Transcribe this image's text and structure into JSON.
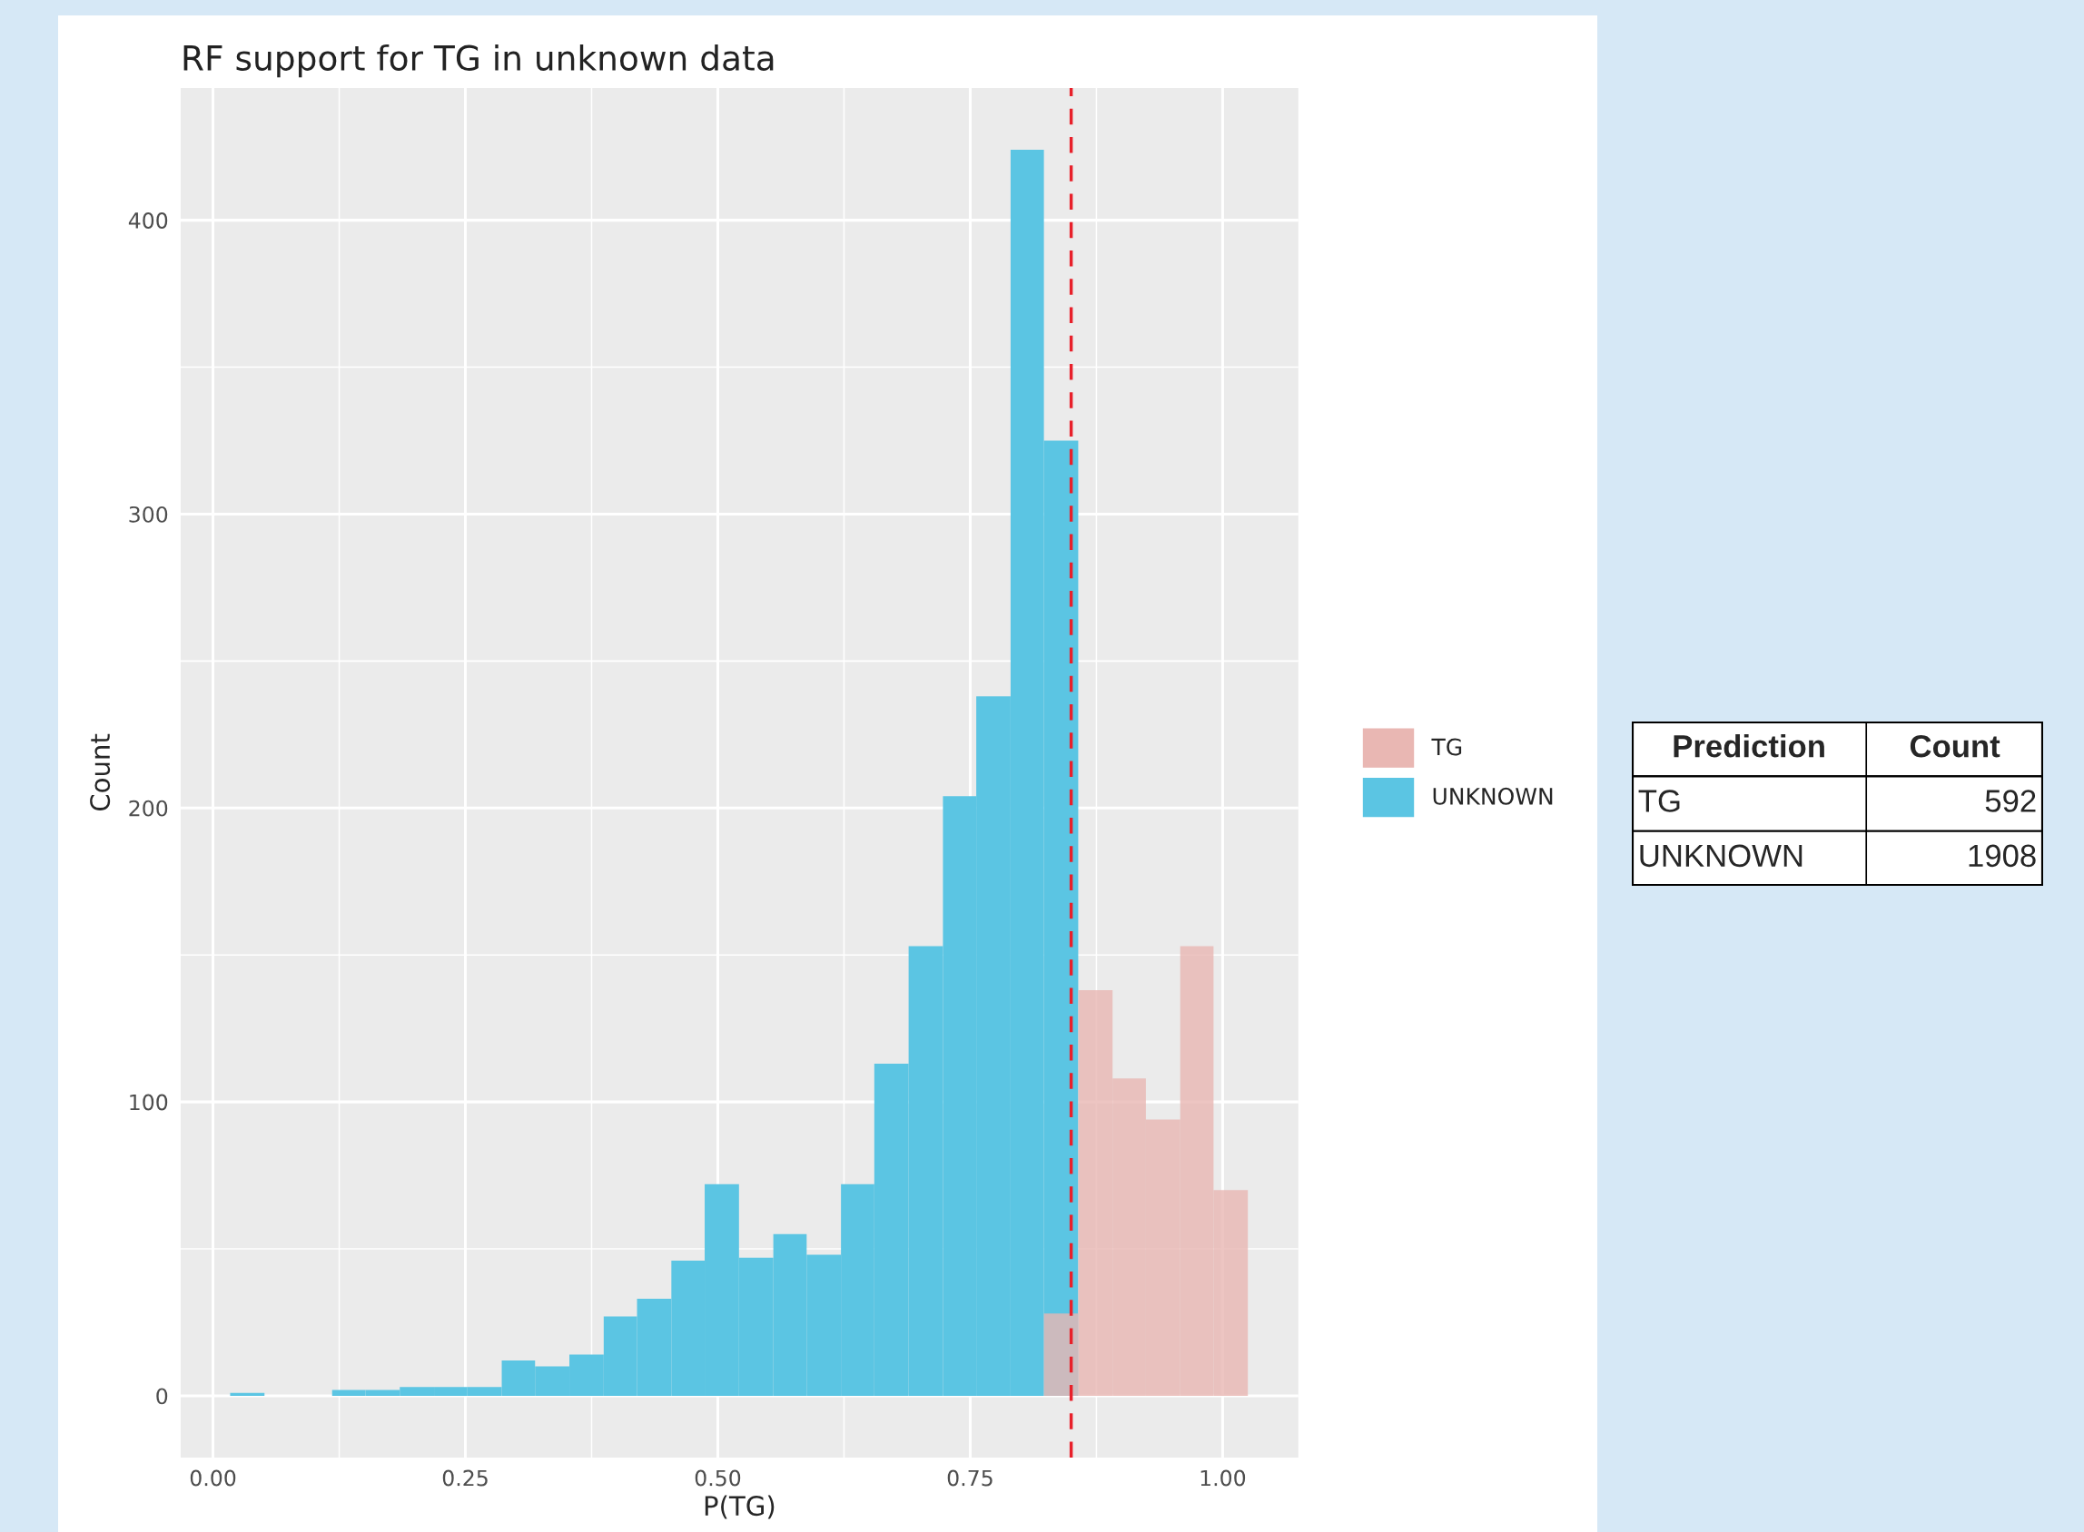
{
  "chart_data": [
    {
      "type": "histogram",
      "title": "RF support for TG in unknown data",
      "xlabel": "P(TG)",
      "ylabel": "Count",
      "bins": [
        0.017,
        0.051,
        0.118,
        0.151,
        0.185,
        0.219,
        0.252,
        0.286,
        0.319,
        0.353,
        0.387,
        0.42,
        0.454,
        0.487,
        0.521,
        0.555,
        0.588,
        0.622,
        0.655,
        0.689,
        0.723,
        0.756,
        0.79,
        0.823,
        0.857,
        0.891,
        0.924,
        0.958,
        0.991,
        1.025
      ],
      "series": [
        {
          "name": "UNKNOWN",
          "color": "#5bc5e3",
          "values": [
            1,
            0,
            2,
            2,
            3,
            3,
            3,
            12,
            10,
            14,
            27,
            33,
            46,
            72,
            47,
            55,
            48,
            72,
            113,
            153,
            204,
            238,
            424,
            325,
            0,
            0,
            0,
            0,
            0
          ]
        },
        {
          "name": "TG",
          "color": "#e9b7b3",
          "values": [
            0,
            0,
            0,
            0,
            0,
            0,
            0,
            0,
            0,
            0,
            0,
            0,
            0,
            0,
            0,
            0,
            0,
            0,
            0,
            0,
            0,
            0,
            0,
            28,
            138,
            108,
            94,
            153,
            70
          ]
        }
      ],
      "xlim": [
        -0.032,
        1.075
      ],
      "ylim": [
        -21,
        445
      ],
      "xticks": [
        {
          "value": 0,
          "label": "0.00"
        },
        {
          "value": 0.25,
          "label": "0.25"
        },
        {
          "value": 0.5,
          "label": "0.50"
        },
        {
          "value": 0.75,
          "label": "0.75"
        },
        {
          "value": 1,
          "label": "1.00"
        }
      ],
      "yticks": [
        0,
        100,
        200,
        300,
        400
      ],
      "ref_lines": [
        {
          "axis": "x",
          "value": 0.85,
          "color": "#e8202a",
          "line_style": "dashed"
        }
      ],
      "grid": true,
      "legend": "right"
    },
    {
      "type": "other",
      "xlabel": "Prediction",
      "ylabel": "Count",
      "categories": [
        "TG",
        "UNKNOWN"
      ],
      "values": [
        592,
        1908
      ],
      "data_labels": true
    }
  ]
}
